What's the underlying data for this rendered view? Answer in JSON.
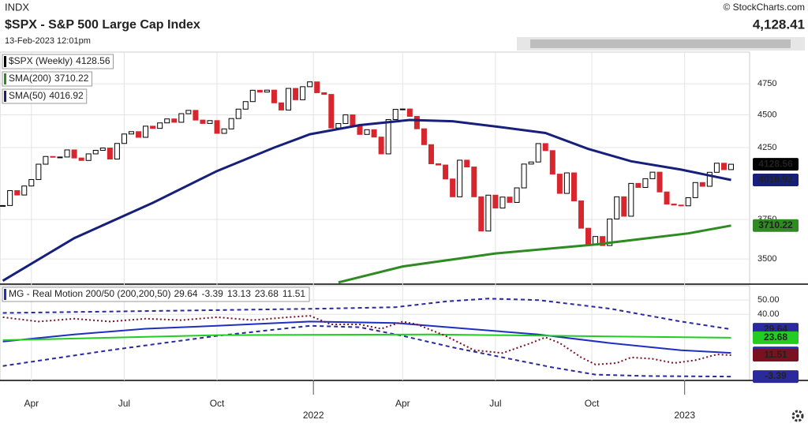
{
  "header": {
    "exchange": "INDX",
    "title": "$SPX - S&P 500 Large Cap Index",
    "date": "13-Feb-2023 12:01pm",
    "copyright": "© StockCharts.com",
    "last_price": "4,128.41"
  },
  "chart_data": [
    {
      "type": "candlestick",
      "log_scale": true,
      "ylim": [
        3350,
        5020
      ],
      "yticks": [
        3500,
        3750,
        4250,
        4500,
        4750
      ],
      "xlim": [
        -0.4,
        104.6
      ],
      "up_color": "#ffffff",
      "down_color": "#d8262e",
      "grid": true,
      "series": [
        {
          "name": "$SPX (Weekly)",
          "color": "#000000",
          "values": [
            3842,
            3943,
            3913,
            3975,
            4020,
            4129,
            4185,
            4180,
            4181,
            4233,
            4174,
            4156,
            4204,
            4230,
            4247,
            4166,
            4281,
            4352,
            4370,
            4327,
            4412,
            4395,
            4437,
            4468,
            4442,
            4509,
            4535,
            4459,
            4433,
            4455,
            4357,
            4391,
            4471,
            4545,
            4605,
            4697,
            4682,
            4698,
            4595,
            4538,
            4712,
            4620,
            4726,
            4766,
            4677,
            4663,
            4398,
            4432,
            4500,
            4419,
            4349,
            4385,
            4329,
            4204,
            4463,
            4543,
            4546,
            4488,
            4392,
            4272,
            4132,
            4123,
            4024,
            3901,
            4158,
            4109,
            3901,
            3675,
            3912,
            3825,
            3899,
            3863,
            3962,
            4130,
            4145,
            4280,
            4228,
            4058,
            3924,
            4067,
            3873,
            3693,
            3586,
            3640,
            3583,
            3753,
            3901,
            3771,
            3993,
            3965,
            4026,
            4072,
            3934,
            3852,
            3845,
            3840,
            3895,
            3999,
            3973,
            4071,
            4136,
            4090,
            4128.56
          ]
        },
        {
          "name": "SMA(200)",
          "color": "#2e8b22",
          "x": [
            47,
            56,
            69,
            83,
            96,
            102
          ],
          "values": [
            3360,
            3455,
            3534,
            3590,
            3660,
            3710.22
          ]
        },
        {
          "name": "SMA(50)",
          "color": "#16207a",
          "x": [
            0,
            10,
            21,
            30,
            38,
            43,
            50,
            57,
            63,
            69,
            76,
            82,
            88,
            95,
            102
          ],
          "values": [
            3370,
            3630,
            3860,
            4080,
            4250,
            4350,
            4420,
            4460,
            4450,
            4410,
            4360,
            4240,
            4150,
            4090,
            4016.92
          ]
        }
      ]
    },
    {
      "type": "line",
      "title": "MG - Real Motion 200/50 (200,200,50)",
      "ylim": [
        -5,
        60
      ],
      "yticks": [
        {
          "value": 40,
          "label": "40.00"
        },
        {
          "value": 50,
          "label": "50.00"
        }
      ],
      "xlim": [
        -0.4,
        104.6
      ],
      "xticks": [
        {
          "value": 4,
          "label": "Apr"
        },
        {
          "value": 17,
          "label": "Jul"
        },
        {
          "value": 30,
          "label": "Oct"
        },
        {
          "value": 43.5,
          "label": "2022"
        },
        {
          "value": 56,
          "label": "Apr"
        },
        {
          "value": 69,
          "label": "Jul"
        },
        {
          "value": 82.5,
          "label": "Oct"
        },
        {
          "value": 95.5,
          "label": "2023"
        }
      ],
      "series": [
        {
          "color": "#2a2a9c",
          "dash": "dashed",
          "x": [
            0,
            15,
            30,
            45,
            55,
            62,
            68,
            75,
            85,
            95,
            102
          ],
          "values": [
            41,
            42,
            43,
            44,
            45,
            49,
            51,
            50,
            44,
            35,
            29.64
          ]
        },
        {
          "color": "#2a2a9c",
          "dash": "dashed",
          "x": [
            0,
            15,
            30,
            43,
            50,
            56,
            63,
            70,
            77,
            83,
            90,
            102
          ],
          "values": [
            4,
            15,
            25,
            32,
            31,
            25,
            17,
            10,
            3,
            -2,
            -3,
            -3.39
          ]
        },
        {
          "color": "#1f2fbf",
          "dash": "solid",
          "x": [
            0,
            10,
            20,
            30,
            43,
            55,
            65,
            75,
            85,
            95,
            102
          ],
          "values": [
            21,
            26,
            30,
            32,
            35,
            34,
            30,
            26,
            20,
            15,
            13.13
          ]
        },
        {
          "color": "#22cc22",
          "dash": "solid",
          "x": [
            0,
            30,
            60,
            102
          ],
          "values": [
            22,
            25.5,
            26,
            23.68
          ]
        },
        {
          "color": "#7b1020",
          "dash": "dotted",
          "x": [
            0,
            5,
            10,
            15,
            20,
            25,
            30,
            35,
            40,
            43,
            46,
            50,
            53,
            56,
            58,
            62,
            66,
            70,
            74,
            76,
            78,
            81,
            83,
            86,
            88,
            91,
            94,
            97,
            100,
            102
          ],
          "values": [
            38,
            35,
            37,
            35,
            37,
            36,
            38,
            36,
            38,
            39,
            33,
            33,
            30,
            35,
            33,
            25,
            15,
            13,
            20,
            24,
            20,
            10,
            5,
            6,
            10,
            9,
            6,
            8,
            12,
            11.51
          ]
        }
      ]
    }
  ]
}
